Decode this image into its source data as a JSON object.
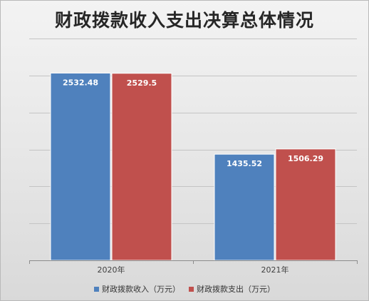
{
  "chart_data": {
    "type": "bar",
    "title": "财政拨款收入支出决算总体情况",
    "categories": [
      "2020年",
      "2021年"
    ],
    "series": [
      {
        "name": "财政拨款收入（万元）",
        "values": [
          2532.48,
          1435.52
        ],
        "labels": [
          "2532.48",
          "1435.52"
        ],
        "color": "#4f81bd"
      },
      {
        "name": "财政拨款支出（万元）",
        "values": [
          2529.5,
          1506.29
        ],
        "labels": [
          "2529.5",
          "1506.29"
        ],
        "color": "#c0504d"
      }
    ],
    "ylim": [
      0,
      3000
    ],
    "y_ticks": [
      0,
      500,
      1000,
      1500,
      2000,
      2500,
      3000
    ],
    "y_tick_labels_shown": false,
    "grid": true,
    "legend_position": "bottom",
    "xlabel": "",
    "ylabel": ""
  }
}
